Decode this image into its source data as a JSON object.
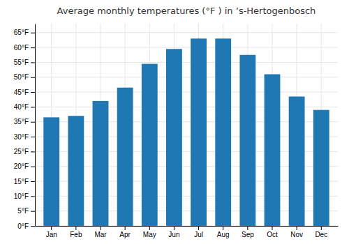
{
  "chart_data": {
    "type": "bar",
    "title": "Average monthly temperatures (°F ) in ’s-Hertogenbosch",
    "categories": [
      "Jan",
      "Feb",
      "Mar",
      "Apr",
      "May",
      "Jun",
      "Jul",
      "Aug",
      "Sep",
      "Oct",
      "Nov",
      "Dec"
    ],
    "values": [
      36.5,
      37.0,
      42.0,
      46.5,
      54.5,
      59.5,
      63.0,
      63.0,
      57.5,
      51.0,
      43.5,
      39.0
    ],
    "ylim": [
      0,
      68
    ],
    "yticks": [
      {
        "value": 0,
        "label": "0°F"
      },
      {
        "value": 5,
        "label": "5°F"
      },
      {
        "value": 10,
        "label": "10°F"
      },
      {
        "value": 15,
        "label": "15°F"
      },
      {
        "value": 20,
        "label": "20°F"
      },
      {
        "value": 25,
        "label": "25°F"
      },
      {
        "value": 30,
        "label": "30°F"
      },
      {
        "value": 35,
        "label": "35°F"
      },
      {
        "value": 40,
        "label": "40°F"
      },
      {
        "value": 45,
        "label": "45°F"
      },
      {
        "value": 50,
        "label": "50°F"
      },
      {
        "value": 55,
        "label": "55°F"
      },
      {
        "value": 60,
        "label": "60°F"
      },
      {
        "value": 65,
        "label": "65°F"
      }
    ],
    "grid": true
  }
}
